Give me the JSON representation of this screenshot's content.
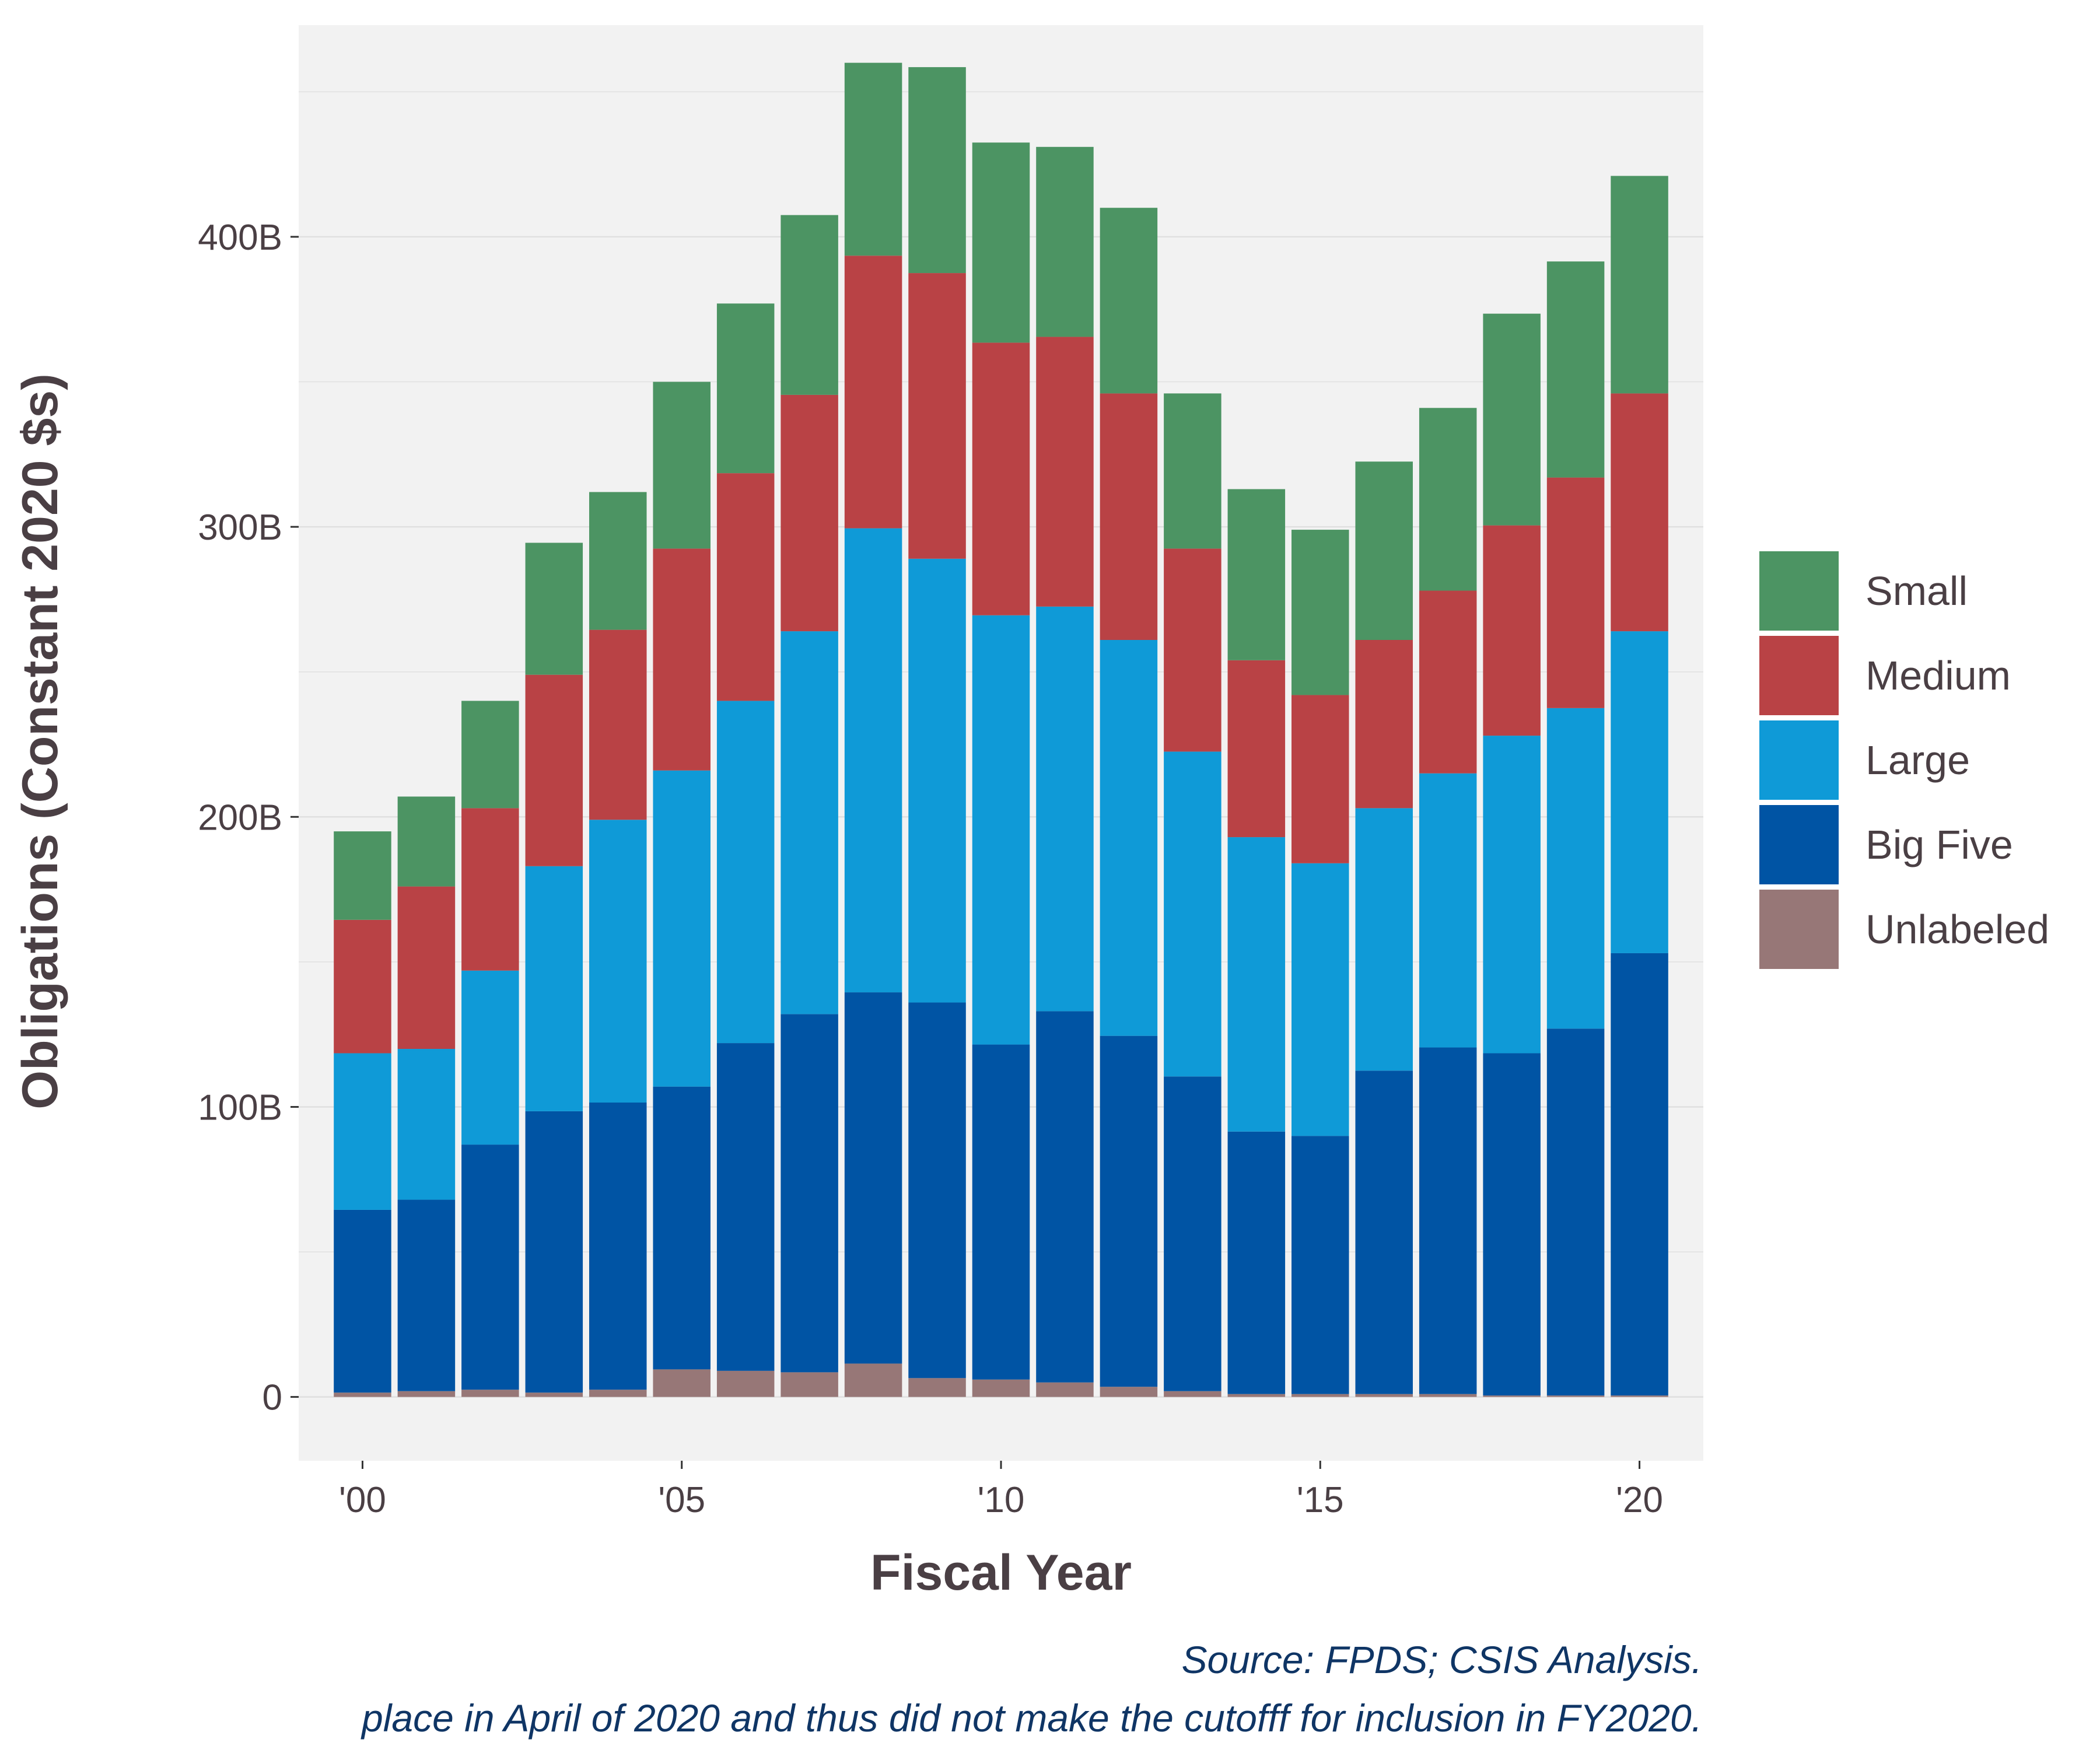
{
  "chart_data": {
    "type": "bar",
    "stacked": true,
    "xlabel": "Fiscal Year",
    "ylabel": "Obligations (Constant 2020 $s)",
    "x": [
      2000,
      2001,
      2002,
      2003,
      2004,
      2005,
      2006,
      2007,
      2008,
      2009,
      2010,
      2011,
      2012,
      2013,
      2014,
      2015,
      2016,
      2017,
      2018,
      2019,
      2020
    ],
    "x_ticks": [
      {
        "value": 2000,
        "label": "'00"
      },
      {
        "value": 2005,
        "label": "'05"
      },
      {
        "value": 2010,
        "label": "'10"
      },
      {
        "value": 2015,
        "label": "'15"
      },
      {
        "value": 2020,
        "label": "'20"
      }
    ],
    "y_ticks": [
      {
        "value": 0,
        "label": "0"
      },
      {
        "value": 100,
        "label": "100B"
      },
      {
        "value": 200,
        "label": "200B"
      },
      {
        "value": 300,
        "label": "300B"
      },
      {
        "value": 400,
        "label": "400B"
      }
    ],
    "ylim": [
      -22,
      473
    ],
    "y_unit": "billions of constant 2020 dollars",
    "grid": true,
    "legend_position": "right",
    "series": [
      {
        "name": "Unlabeled",
        "color": "#977777",
        "values": [
          1.5,
          2,
          2.5,
          1.5,
          2.5,
          9.5,
          9,
          8.5,
          11.5,
          6.5,
          6,
          5,
          3.5,
          2,
          1,
          1,
          1,
          1,
          0.5,
          0.5,
          0.5
        ]
      },
      {
        "name": "Big Five",
        "color": "#0054a4",
        "values": [
          63,
          66,
          84.5,
          97,
          99,
          97.5,
          113,
          123.5,
          128,
          129.5,
          115.5,
          128,
          121,
          108.5,
          90.5,
          89,
          111.5,
          119.5,
          118,
          126.5,
          152.5
        ]
      },
      {
        "name": "Large",
        "color": "#0f9ad7",
        "values": [
          54,
          52,
          60,
          84.5,
          97.5,
          109,
          118,
          132,
          160,
          153,
          148,
          139.5,
          136.5,
          112,
          101.5,
          94,
          90.5,
          94.5,
          109.5,
          110.5,
          111
        ]
      },
      {
        "name": "Medium",
        "color": "#b94245",
        "values": [
          46,
          56,
          56,
          66,
          65.5,
          76.5,
          78.5,
          81.5,
          94,
          98.5,
          94,
          93,
          85,
          70,
          61,
          58,
          58,
          63,
          72.5,
          79.5,
          82
        ]
      },
      {
        "name": "Small",
        "color": "#4c9463",
        "values": [
          30.5,
          31,
          37,
          45.5,
          47.5,
          57.5,
          58.5,
          62,
          66.5,
          71,
          69,
          65.5,
          64,
          53.5,
          59,
          57,
          61.5,
          63,
          73,
          74.5,
          75
        ]
      }
    ]
  },
  "caption": {
    "source": "Source: FPDS; CSIS Analysis.",
    "note": "place in April of 2020 and thus did not make the cutofff for inclusion in FY2020."
  },
  "colors": {
    "panel_background": "#f2f2f2",
    "grid": "#e0e0e0",
    "text": "#4a3f44",
    "caption": "#0f3565"
  }
}
